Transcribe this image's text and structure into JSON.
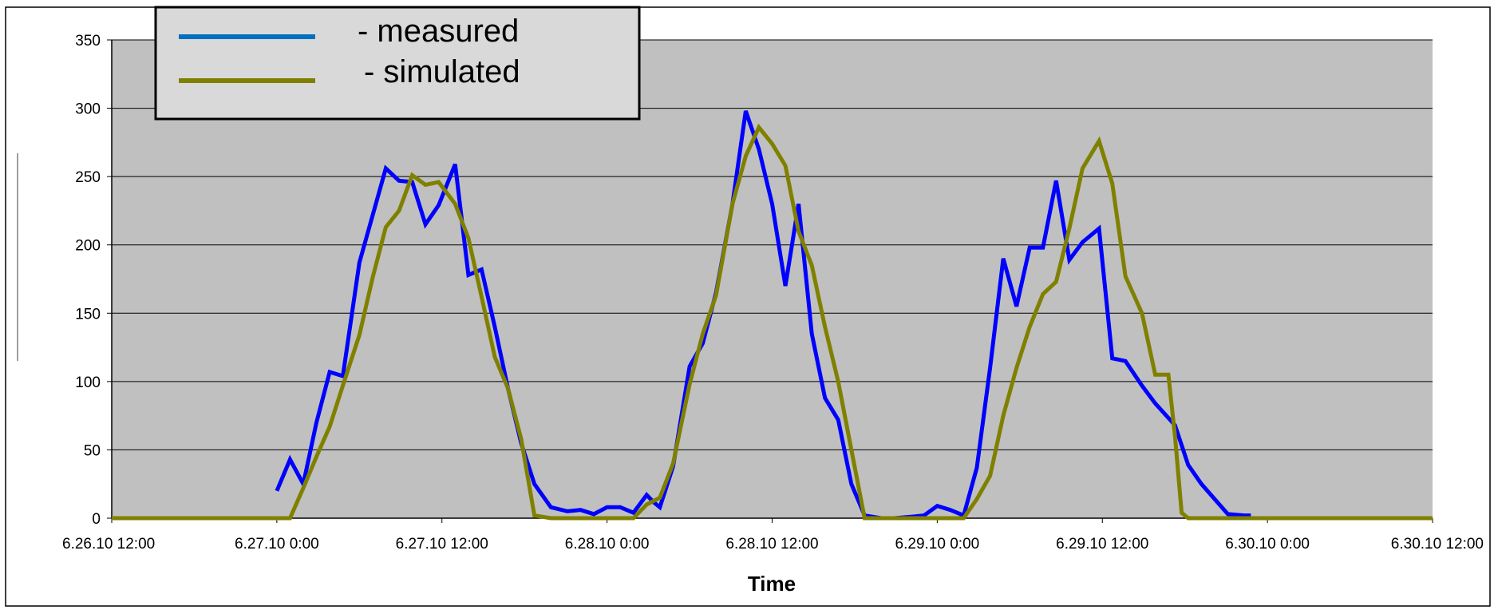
{
  "chart_data": {
    "type": "line",
    "title": "",
    "xlabel": "Time",
    "ylabel": "",
    "ylim": [
      0,
      350
    ],
    "yticks": [
      0,
      50,
      100,
      150,
      200,
      250,
      300,
      350
    ],
    "xlim": [
      -0.5,
      3.5
    ],
    "xticks": [
      {
        "value": -0.5,
        "label": "6.26.10 12:00"
      },
      {
        "value": 0.0,
        "label": "6.27.10 0:00"
      },
      {
        "value": 0.5,
        "label": "6.27.10 12:00"
      },
      {
        "value": 1.0,
        "label": "6.28.10 0:00"
      },
      {
        "value": 1.5,
        "label": "6.28.10 12:00"
      },
      {
        "value": 2.0,
        "label": "6.29.10 0:00"
      },
      {
        "value": 2.5,
        "label": "6.29.10 12:00"
      },
      {
        "value": 3.0,
        "label": "6.30.10 0:00"
      },
      {
        "value": 3.5,
        "label": "6.30.10 12:00"
      }
    ],
    "grid": true,
    "legend_position": "top-left",
    "colors": {
      "plot_background": "#c0c0c0",
      "gridline": "#000000",
      "legend_background": "#d9d9d9"
    },
    "series": [
      {
        "name": "- measured",
        "legend_line_color": "#0070c0",
        "color": "#0000ff",
        "points": [
          [
            0.0,
            20
          ],
          [
            0.04,
            43
          ],
          [
            0.08,
            25
          ],
          [
            0.12,
            70
          ],
          [
            0.16,
            107
          ],
          [
            0.2,
            104
          ],
          [
            0.25,
            187
          ],
          [
            0.33,
            256
          ],
          [
            0.37,
            247
          ],
          [
            0.41,
            246
          ],
          [
            0.45,
            215
          ],
          [
            0.49,
            229
          ],
          [
            0.54,
            259
          ],
          [
            0.58,
            178
          ],
          [
            0.6,
            180
          ],
          [
            0.62,
            182
          ],
          [
            0.66,
            140
          ],
          [
            0.7,
            95
          ],
          [
            0.74,
            55
          ],
          [
            0.78,
            25
          ],
          [
            0.83,
            8
          ],
          [
            0.88,
            5
          ],
          [
            0.92,
            6
          ],
          [
            0.96,
            3
          ],
          [
            1.0,
            8
          ],
          [
            1.04,
            8
          ],
          [
            1.08,
            4
          ],
          [
            1.12,
            17
          ],
          [
            1.14,
            12
          ],
          [
            1.16,
            8
          ],
          [
            1.2,
            38
          ],
          [
            1.25,
            111
          ],
          [
            1.29,
            128
          ],
          [
            1.33,
            165
          ],
          [
            1.38,
            230
          ],
          [
            1.42,
            298
          ],
          [
            1.46,
            270
          ],
          [
            1.5,
            230
          ],
          [
            1.54,
            170
          ],
          [
            1.58,
            230
          ],
          [
            1.62,
            135
          ],
          [
            1.66,
            88
          ],
          [
            1.7,
            72
          ],
          [
            1.74,
            25
          ],
          [
            1.78,
            2
          ],
          [
            1.83,
            0
          ],
          [
            1.87,
            0
          ],
          [
            1.92,
            1
          ],
          [
            1.96,
            2
          ],
          [
            2.0,
            9
          ],
          [
            2.04,
            6
          ],
          [
            2.08,
            2
          ],
          [
            2.12,
            37
          ],
          [
            2.16,
            110
          ],
          [
            2.2,
            190
          ],
          [
            2.24,
            155
          ],
          [
            2.28,
            198
          ],
          [
            2.32,
            198
          ],
          [
            2.36,
            247
          ],
          [
            2.4,
            189
          ],
          [
            2.44,
            202
          ],
          [
            2.49,
            212
          ],
          [
            2.53,
            117
          ],
          [
            2.57,
            115
          ],
          [
            2.62,
            97
          ],
          [
            2.66,
            84
          ],
          [
            2.72,
            68
          ],
          [
            2.76,
            39
          ],
          [
            2.8,
            25
          ],
          [
            2.88,
            3
          ],
          [
            2.93,
            2
          ],
          [
            2.95,
            2
          ]
        ]
      },
      {
        "name": "- simulated",
        "legend_line_color": "#808000",
        "color": "#808000",
        "points": [
          [
            -0.5,
            0
          ],
          [
            0.04,
            0
          ],
          [
            0.08,
            22
          ],
          [
            0.12,
            45
          ],
          [
            0.16,
            67
          ],
          [
            0.2,
            97
          ],
          [
            0.25,
            134
          ],
          [
            0.29,
            176
          ],
          [
            0.33,
            213
          ],
          [
            0.37,
            225
          ],
          [
            0.41,
            251
          ],
          [
            0.45,
            244
          ],
          [
            0.49,
            246
          ],
          [
            0.54,
            230
          ],
          [
            0.58,
            205
          ],
          [
            0.62,
            162
          ],
          [
            0.66,
            118
          ],
          [
            0.7,
            95
          ],
          [
            0.74,
            58
          ],
          [
            0.78,
            2
          ],
          [
            0.83,
            0
          ],
          [
            1.08,
            0
          ],
          [
            1.12,
            10
          ],
          [
            1.16,
            15
          ],
          [
            1.2,
            40
          ],
          [
            1.25,
            98
          ],
          [
            1.29,
            135
          ],
          [
            1.33,
            163
          ],
          [
            1.38,
            230
          ],
          [
            1.42,
            265
          ],
          [
            1.46,
            286
          ],
          [
            1.5,
            274
          ],
          [
            1.54,
            258
          ],
          [
            1.58,
            210
          ],
          [
            1.62,
            185
          ],
          [
            1.66,
            140
          ],
          [
            1.7,
            100
          ],
          [
            1.74,
            50
          ],
          [
            1.78,
            0
          ],
          [
            2.08,
            0
          ],
          [
            2.12,
            14
          ],
          [
            2.16,
            31
          ],
          [
            2.2,
            75
          ],
          [
            2.24,
            110
          ],
          [
            2.28,
            140
          ],
          [
            2.32,
            164
          ],
          [
            2.36,
            173
          ],
          [
            2.4,
            212
          ],
          [
            2.44,
            256
          ],
          [
            2.49,
            276
          ],
          [
            2.53,
            245
          ],
          [
            2.57,
            177
          ],
          [
            2.62,
            150
          ],
          [
            2.66,
            105
          ],
          [
            2.7,
            105
          ],
          [
            2.72,
            60
          ],
          [
            2.74,
            4
          ],
          [
            2.76,
            0
          ],
          [
            3.5,
            0
          ]
        ]
      }
    ]
  }
}
